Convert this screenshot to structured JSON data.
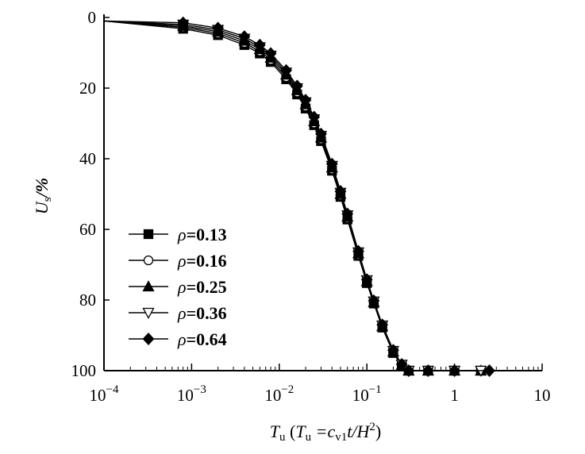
{
  "chart_data": {
    "type": "line",
    "x_scale": "log",
    "y_inverted": true,
    "xlim": [
      0.0001,
      10
    ],
    "ylim": [
      0,
      100
    ],
    "x_ticks": [
      {
        "value": 0.0001,
        "base": "10",
        "exp": "−4"
      },
      {
        "value": 0.001,
        "base": "10",
        "exp": "−3"
      },
      {
        "value": 0.01,
        "base": "10",
        "exp": "−2"
      },
      {
        "value": 0.1,
        "base": "10",
        "exp": "−1"
      },
      {
        "value": 1,
        "base": "1",
        "exp": ""
      },
      {
        "value": 10,
        "base": "10",
        "exp": ""
      }
    ],
    "y_ticks": [
      0,
      20,
      40,
      60,
      80,
      100
    ],
    "xlabel": {
      "sym": "T",
      "sub": "u",
      "open": " (",
      "sym2": "T",
      "sub2": "u",
      "eq": " =c",
      "sub3": "v1",
      "rest": "t/H",
      "sup": "2",
      "close": ")"
    },
    "ylabel": {
      "sym": "U",
      "sub": "s",
      "rest": "/%"
    },
    "legend_position": "bottom-left",
    "series": [
      {
        "name": "ρ=0.13",
        "name_sym": "ρ",
        "name_val": "=0.13",
        "marker": "square",
        "x": [
          0.0001,
          0.0008,
          0.002,
          0.004,
          0.006,
          0.008,
          0.012,
          0.016,
          0.02,
          0.025,
          0.03,
          0.04,
          0.05,
          0.06,
          0.08,
          0.1,
          0.12,
          0.15,
          0.2,
          0.25,
          0.3,
          0.5,
          1,
          2
        ],
        "y": [
          1,
          3.2,
          5,
          7.8,
          10.2,
          12.6,
          17.5,
          21.8,
          25.8,
          30.5,
          35,
          43.4,
          50.8,
          57.2,
          67.5,
          75.2,
          81,
          87.8,
          95,
          98.6,
          100,
          100,
          100,
          100
        ]
      },
      {
        "name": "ρ=0.16",
        "name_sym": "ρ",
        "name_val": "=0.16",
        "marker": "circle-open",
        "x": [
          0.0001,
          0.0008,
          0.002,
          0.004,
          0.006,
          0.008,
          0.012,
          0.016,
          0.02,
          0.025,
          0.03,
          0.04,
          0.05,
          0.06,
          0.08,
          0.1,
          0.12,
          0.15,
          0.2,
          0.25,
          0.3,
          0.5,
          1,
          2
        ],
        "y": [
          1,
          2.8,
          4.5,
          7.2,
          9.6,
          12,
          16.9,
          21.2,
          25.2,
          30,
          34.5,
          43,
          50.4,
          56.8,
          67.2,
          75,
          80.8,
          87.6,
          94.8,
          98.5,
          100,
          100,
          100,
          100
        ]
      },
      {
        "name": "ρ=0.25",
        "name_sym": "ρ",
        "name_val": "=0.25",
        "marker": "triangle",
        "x": [
          0.0001,
          0.0008,
          0.002,
          0.004,
          0.006,
          0.008,
          0.012,
          0.016,
          0.02,
          0.025,
          0.03,
          0.04,
          0.05,
          0.06,
          0.08,
          0.1,
          0.12,
          0.15,
          0.2,
          0.25,
          0.3,
          0.5,
          1,
          2
        ],
        "y": [
          1,
          2.4,
          4,
          6.6,
          9,
          11.4,
          16.2,
          20.6,
          24.6,
          29.4,
          34,
          42.5,
          50,
          56.4,
          66.8,
          74.7,
          80.6,
          87.4,
          94.6,
          98.4,
          100,
          100,
          100,
          100
        ]
      },
      {
        "name": "ρ=0.36",
        "name_sym": "ρ",
        "name_val": "=0.36",
        "marker": "triangle-down-open",
        "x": [
          0.0001,
          0.0008,
          0.002,
          0.004,
          0.006,
          0.008,
          0.012,
          0.016,
          0.02,
          0.025,
          0.03,
          0.04,
          0.05,
          0.06,
          0.08,
          0.1,
          0.12,
          0.15,
          0.2,
          0.25,
          0.3,
          0.5,
          1,
          2
        ],
        "y": [
          1,
          2,
          3.5,
          6,
          8.4,
          10.8,
          15.6,
          20,
          24,
          28.8,
          33.5,
          42,
          49.6,
          56,
          66.5,
          74.4,
          80.4,
          87.2,
          94.4,
          98.3,
          100,
          100,
          100,
          100
        ]
      },
      {
        "name": "ρ=0.64",
        "name_sym": "ρ",
        "name_val": "=0.64",
        "marker": "diamond",
        "x": [
          0.0001,
          0.0008,
          0.002,
          0.004,
          0.006,
          0.008,
          0.012,
          0.016,
          0.02,
          0.025,
          0.03,
          0.04,
          0.05,
          0.06,
          0.08,
          0.1,
          0.12,
          0.15,
          0.2,
          0.25,
          0.3,
          0.5,
          1,
          2.5
        ],
        "y": [
          1,
          1.5,
          3,
          5.4,
          7.8,
          10.2,
          15,
          19.4,
          23.4,
          28.2,
          33,
          41.5,
          49.2,
          55.6,
          66.2,
          74.2,
          80.2,
          87,
          94.2,
          98.2,
          100,
          100,
          100,
          100
        ]
      }
    ]
  }
}
